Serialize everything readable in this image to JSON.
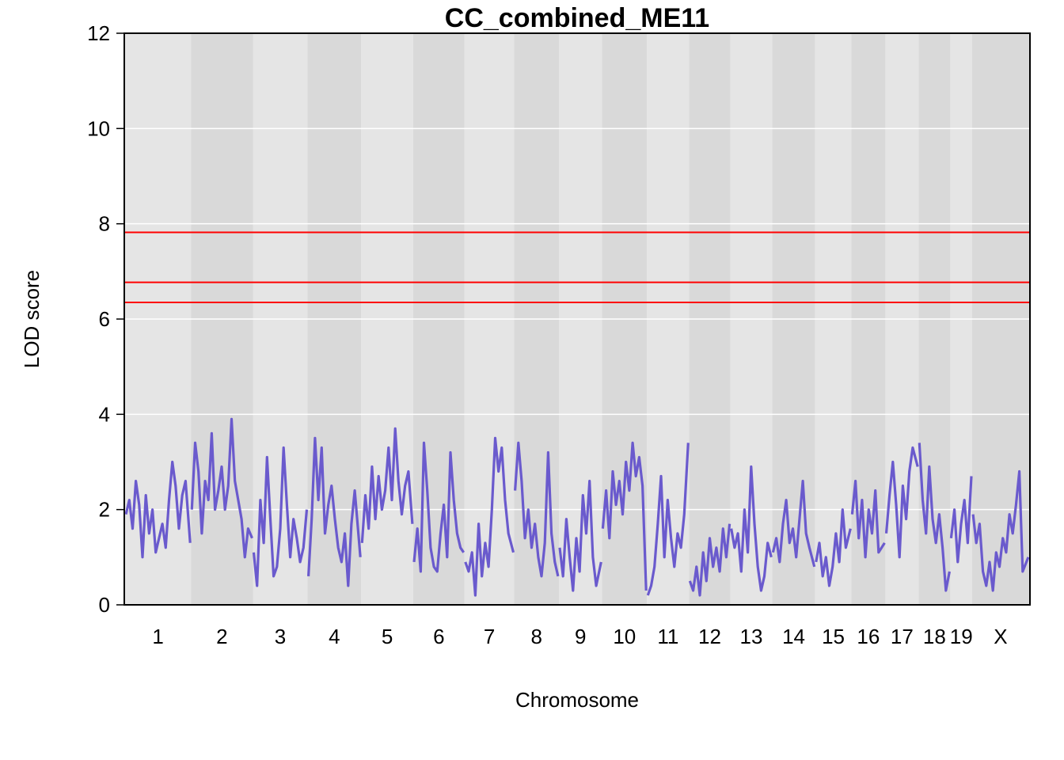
{
  "chart_data": {
    "type": "line",
    "title": "CC_combined_ME11",
    "xlabel": "Chromosome",
    "ylabel": "LOD score",
    "ylim": [
      0,
      12
    ],
    "yticks": [
      "0",
      "2",
      "4",
      "6",
      "8",
      "10",
      "12"
    ],
    "grid": true,
    "line_color": "#6A5ACD",
    "threshold_color": "#FF0000",
    "band_colors": [
      "#E5E5E5",
      "#D9D9D9"
    ],
    "thresholds": [
      7.82,
      6.77,
      6.35
    ],
    "chromosomes": [
      {
        "label": "1",
        "length": 1.94
      },
      {
        "label": "2",
        "length": 1.82
      },
      {
        "label": "3",
        "length": 1.6
      },
      {
        "label": "4",
        "length": 1.57
      },
      {
        "label": "5",
        "length": 1.52
      },
      {
        "label": "6",
        "length": 1.5
      },
      {
        "label": "7",
        "length": 1.45
      },
      {
        "label": "8",
        "length": 1.3
      },
      {
        "label": "9",
        "length": 1.25
      },
      {
        "label": "10",
        "length": 1.31
      },
      {
        "label": "11",
        "length": 1.22
      },
      {
        "label": "12",
        "length": 1.2
      },
      {
        "label": "13",
        "length": 1.21
      },
      {
        "label": "14",
        "length": 1.25
      },
      {
        "label": "15",
        "length": 1.04
      },
      {
        "label": "16",
        "length": 0.98
      },
      {
        "label": "17",
        "length": 0.95
      },
      {
        "label": "18",
        "length": 0.91
      },
      {
        "label": "19",
        "length": 0.61
      },
      {
        "label": "X",
        "length": 1.67
      }
    ],
    "series": [
      {
        "chr": "1",
        "pos": [
          0.0,
          0.1,
          0.2,
          0.3,
          0.4,
          0.5,
          0.6,
          0.7,
          0.8,
          0.9,
          1.0,
          1.1,
          1.2,
          1.3,
          1.4,
          1.5,
          1.6,
          1.7,
          1.8,
          1.94
        ],
        "lod": [
          1.9,
          2.2,
          1.6,
          2.6,
          2.1,
          1.0,
          2.3,
          1.5,
          2.0,
          1.1,
          1.4,
          1.7,
          1.2,
          2.2,
          3.0,
          2.5,
          1.6,
          2.3,
          2.6,
          1.3
        ]
      },
      {
        "chr": "2",
        "pos": [
          0.0,
          0.1,
          0.2,
          0.3,
          0.4,
          0.5,
          0.6,
          0.7,
          0.8,
          0.9,
          1.0,
          1.1,
          1.2,
          1.3,
          1.4,
          1.5,
          1.6,
          1.7,
          1.82
        ],
        "lod": [
          2.0,
          3.4,
          2.8,
          1.5,
          2.6,
          2.2,
          3.6,
          2.0,
          2.4,
          2.9,
          2.0,
          2.5,
          3.9,
          2.6,
          2.2,
          1.8,
          1.0,
          1.6,
          1.4
        ]
      },
      {
        "chr": "3",
        "pos": [
          0.0,
          0.1,
          0.2,
          0.3,
          0.4,
          0.5,
          0.6,
          0.7,
          0.8,
          0.9,
          1.0,
          1.1,
          1.2,
          1.3,
          1.4,
          1.5,
          1.6
        ],
        "lod": [
          1.1,
          0.4,
          2.2,
          1.3,
          3.1,
          1.8,
          0.6,
          0.8,
          1.6,
          3.3,
          2.1,
          1.0,
          1.8,
          1.4,
          0.9,
          1.2,
          2.0
        ]
      },
      {
        "chr": "4",
        "pos": [
          0.0,
          0.1,
          0.2,
          0.3,
          0.4,
          0.5,
          0.6,
          0.7,
          0.8,
          0.9,
          1.0,
          1.1,
          1.2,
          1.3,
          1.4,
          1.57
        ],
        "lod": [
          0.6,
          1.8,
          3.5,
          2.2,
          3.3,
          1.5,
          2.1,
          2.5,
          1.8,
          1.2,
          0.9,
          1.5,
          0.4,
          1.7,
          2.4,
          1.0
        ]
      },
      {
        "chr": "5",
        "pos": [
          0.0,
          0.1,
          0.2,
          0.3,
          0.4,
          0.5,
          0.6,
          0.7,
          0.8,
          0.9,
          1.0,
          1.1,
          1.2,
          1.3,
          1.4,
          1.52
        ],
        "lod": [
          1.3,
          2.3,
          1.6,
          2.9,
          1.8,
          2.7,
          2.0,
          2.4,
          3.3,
          2.2,
          3.7,
          2.6,
          1.9,
          2.5,
          2.8,
          1.7
        ]
      },
      {
        "chr": "6",
        "pos": [
          0.0,
          0.1,
          0.2,
          0.3,
          0.4,
          0.5,
          0.6,
          0.7,
          0.8,
          0.9,
          1.0,
          1.1,
          1.2,
          1.3,
          1.4,
          1.5
        ],
        "lod": [
          0.9,
          1.6,
          0.7,
          3.4,
          2.4,
          1.2,
          0.8,
          0.7,
          1.5,
          2.1,
          1.0,
          3.2,
          2.2,
          1.5,
          1.2,
          1.1
        ]
      },
      {
        "chr": "7",
        "pos": [
          0.0,
          0.1,
          0.2,
          0.3,
          0.4,
          0.5,
          0.6,
          0.7,
          0.8,
          0.9,
          1.0,
          1.1,
          1.2,
          1.3,
          1.45
        ],
        "lod": [
          0.9,
          0.7,
          1.1,
          0.2,
          1.7,
          0.6,
          1.3,
          0.8,
          2.0,
          3.5,
          2.8,
          3.3,
          2.2,
          1.5,
          1.1
        ]
      },
      {
        "chr": "8",
        "pos": [
          0.0,
          0.1,
          0.2,
          0.3,
          0.4,
          0.5,
          0.6,
          0.7,
          0.8,
          0.9,
          1.0,
          1.1,
          1.2,
          1.3
        ],
        "lod": [
          2.4,
          3.4,
          2.6,
          1.4,
          2.0,
          1.2,
          1.7,
          1.0,
          0.6,
          1.3,
          3.2,
          1.5,
          0.9,
          0.6
        ]
      },
      {
        "chr": "9",
        "pos": [
          0.0,
          0.1,
          0.2,
          0.3,
          0.4,
          0.5,
          0.6,
          0.7,
          0.8,
          0.9,
          1.0,
          1.1,
          1.25
        ],
        "lod": [
          1.2,
          0.6,
          1.8,
          1.0,
          0.3,
          1.4,
          0.7,
          2.3,
          1.5,
          2.6,
          1.0,
          0.4,
          0.9
        ]
      },
      {
        "chr": "10",
        "pos": [
          0.0,
          0.1,
          0.2,
          0.3,
          0.4,
          0.5,
          0.6,
          0.7,
          0.8,
          0.9,
          1.0,
          1.1,
          1.2,
          1.31
        ],
        "lod": [
          1.6,
          2.4,
          1.4,
          2.8,
          2.1,
          2.6,
          1.9,
          3.0,
          2.4,
          3.4,
          2.7,
          3.1,
          2.5,
          0.3
        ]
      },
      {
        "chr": "11",
        "pos": [
          0.0,
          0.1,
          0.2,
          0.3,
          0.4,
          0.5,
          0.6,
          0.7,
          0.8,
          0.9,
          1.0,
          1.1,
          1.22
        ],
        "lod": [
          0.2,
          0.4,
          0.8,
          1.7,
          2.7,
          1.0,
          2.2,
          1.4,
          0.8,
          1.5,
          1.2,
          1.9,
          3.4
        ]
      },
      {
        "chr": "12",
        "pos": [
          0.0,
          0.1,
          0.2,
          0.3,
          0.4,
          0.5,
          0.6,
          0.7,
          0.8,
          0.9,
          1.0,
          1.1,
          1.2
        ],
        "lod": [
          0.5,
          0.3,
          0.8,
          0.2,
          1.1,
          0.5,
          1.4,
          0.8,
          1.2,
          0.7,
          1.6,
          1.0,
          1.7
        ]
      },
      {
        "chr": "13",
        "pos": [
          0.0,
          0.1,
          0.2,
          0.3,
          0.4,
          0.5,
          0.6,
          0.7,
          0.8,
          0.9,
          1.0,
          1.1,
          1.21
        ],
        "lod": [
          1.6,
          1.2,
          1.5,
          0.7,
          2.0,
          1.1,
          2.9,
          1.7,
          0.8,
          0.3,
          0.6,
          1.3,
          1.0
        ]
      },
      {
        "chr": "14",
        "pos": [
          0.0,
          0.1,
          0.2,
          0.3,
          0.4,
          0.5,
          0.6,
          0.7,
          0.8,
          0.9,
          1.0,
          1.1,
          1.25
        ],
        "lod": [
          1.1,
          1.4,
          0.9,
          1.7,
          2.2,
          1.3,
          1.6,
          1.0,
          1.8,
          2.6,
          1.5,
          1.2,
          0.8
        ]
      },
      {
        "chr": "15",
        "pos": [
          0.0,
          0.1,
          0.2,
          0.3,
          0.4,
          0.5,
          0.6,
          0.7,
          0.8,
          0.9,
          1.04
        ],
        "lod": [
          0.9,
          1.3,
          0.6,
          1.0,
          0.4,
          0.8,
          1.5,
          0.9,
          2.0,
          1.2,
          1.6
        ]
      },
      {
        "chr": "16",
        "pos": [
          0.0,
          0.1,
          0.2,
          0.3,
          0.4,
          0.5,
          0.6,
          0.7,
          0.8,
          0.98
        ],
        "lod": [
          1.9,
          2.6,
          1.4,
          2.2,
          1.0,
          2.0,
          1.5,
          2.4,
          1.1,
          1.3
        ]
      },
      {
        "chr": "17",
        "pos": [
          0.0,
          0.1,
          0.2,
          0.3,
          0.4,
          0.5,
          0.6,
          0.7,
          0.8,
          0.95
        ],
        "lod": [
          1.5,
          2.3,
          3.0,
          2.1,
          1.0,
          2.5,
          1.8,
          2.8,
          3.3,
          2.9
        ]
      },
      {
        "chr": "18",
        "pos": [
          0.0,
          0.1,
          0.2,
          0.3,
          0.4,
          0.5,
          0.6,
          0.7,
          0.8,
          0.91
        ],
        "lod": [
          3.4,
          2.2,
          1.5,
          2.9,
          1.8,
          1.3,
          1.9,
          1.2,
          0.3,
          0.7
        ]
      },
      {
        "chr": "19",
        "pos": [
          0.0,
          0.1,
          0.2,
          0.3,
          0.4,
          0.5,
          0.61
        ],
        "lod": [
          1.4,
          2.0,
          0.9,
          1.7,
          2.2,
          1.3,
          2.7
        ]
      },
      {
        "chr": "X",
        "pos": [
          0.0,
          0.1,
          0.2,
          0.3,
          0.4,
          0.5,
          0.6,
          0.7,
          0.8,
          0.9,
          1.0,
          1.1,
          1.2,
          1.3,
          1.4,
          1.5,
          1.67
        ],
        "lod": [
          1.9,
          1.3,
          1.7,
          0.7,
          0.4,
          0.9,
          0.3,
          1.1,
          0.8,
          1.4,
          1.1,
          1.9,
          1.5,
          2.1,
          2.8,
          0.7,
          1.0
        ]
      }
    ]
  }
}
